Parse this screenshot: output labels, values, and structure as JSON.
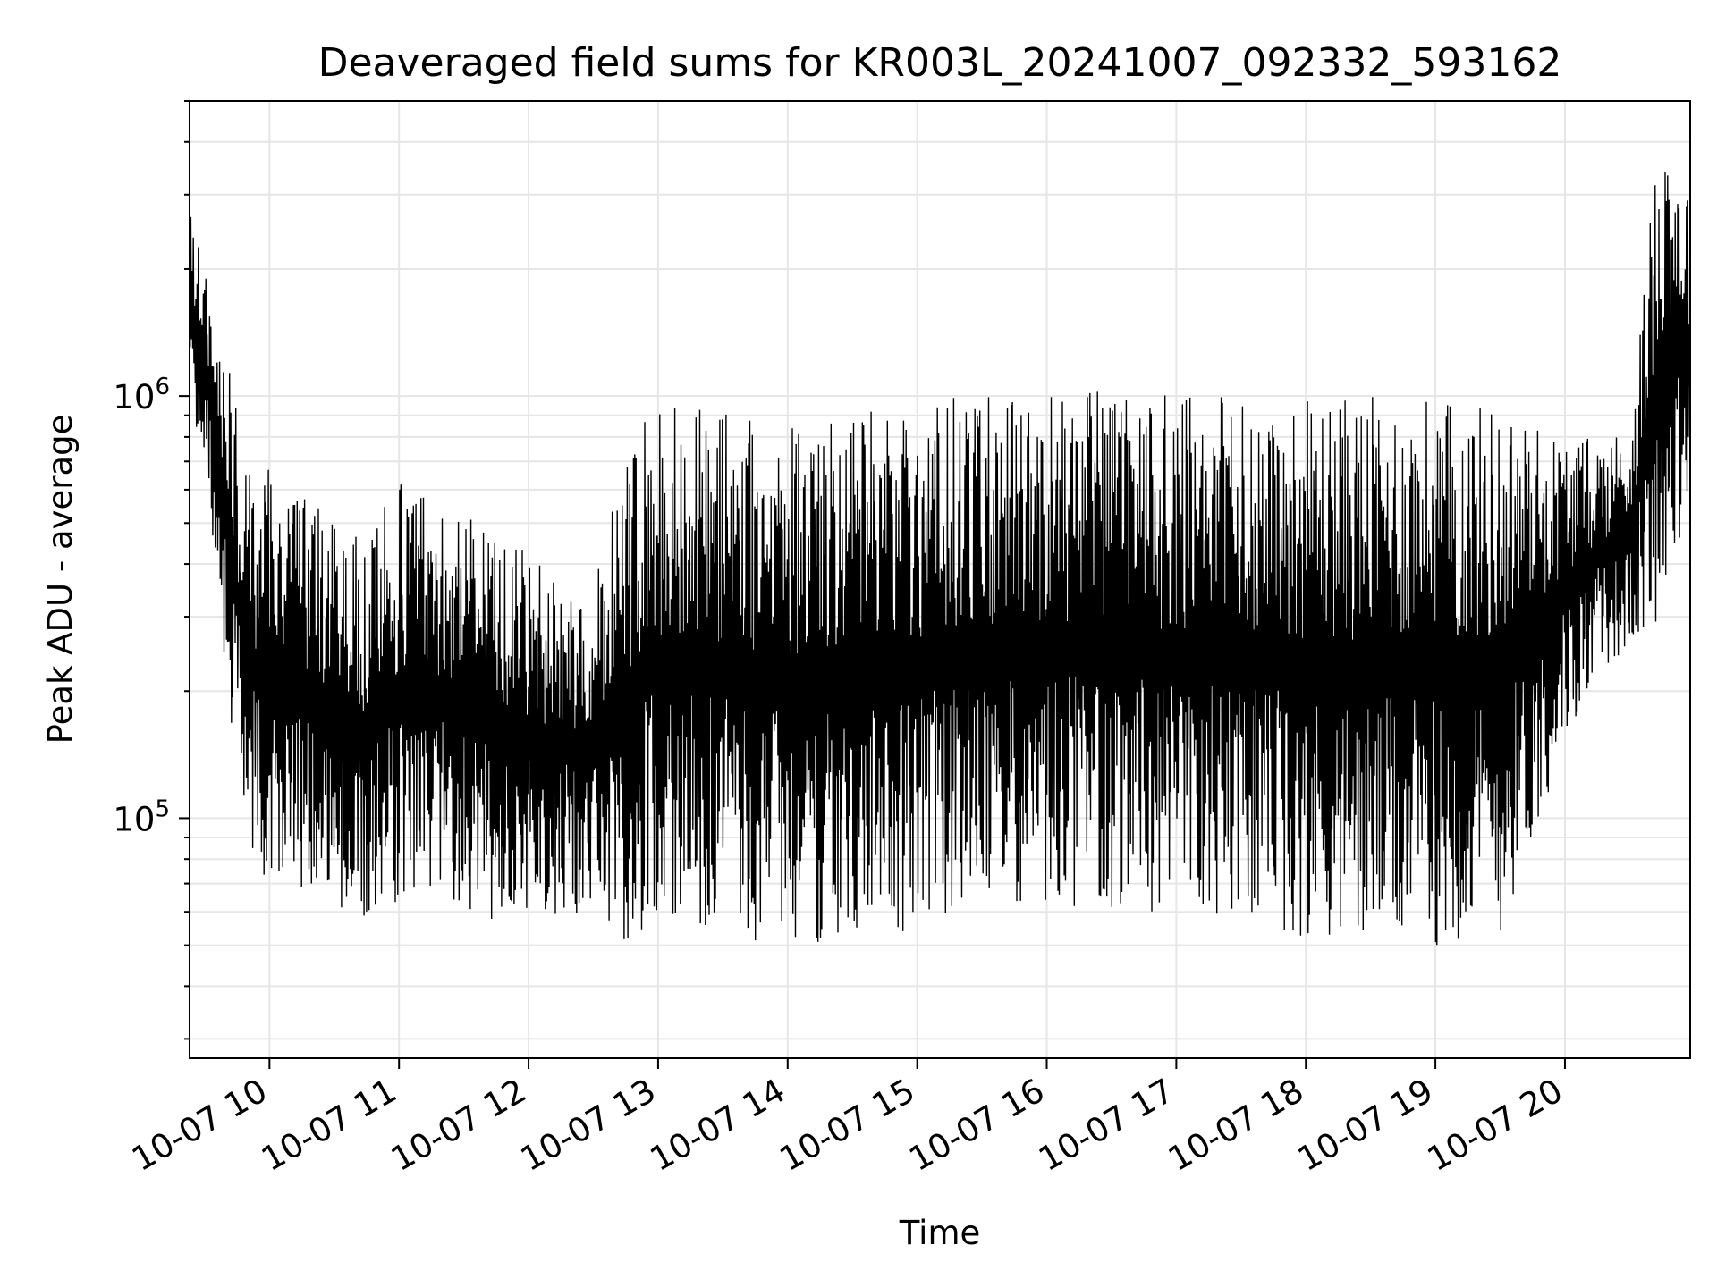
{
  "chart_data": {
    "type": "line",
    "title": "Deaveraged field sums for KR003L_20241007_092332_593162",
    "xlabel": "Time",
    "ylabel": "Peak ADU - average",
    "yscale": "log",
    "ylim": [
      27000,
      5000000
    ],
    "xlim": [
      "2024-10-07 09:23",
      "2024-10-07 20:58"
    ],
    "x_ticks": [
      {
        "time": "2024-10-07 10:00",
        "label": "10-07 10"
      },
      {
        "time": "2024-10-07 11:00",
        "label": "10-07 11"
      },
      {
        "time": "2024-10-07 12:00",
        "label": "10-07 12"
      },
      {
        "time": "2024-10-07 13:00",
        "label": "10-07 13"
      },
      {
        "time": "2024-10-07 14:00",
        "label": "10-07 14"
      },
      {
        "time": "2024-10-07 15:00",
        "label": "10-07 15"
      },
      {
        "time": "2024-10-07 16:00",
        "label": "10-07 16"
      },
      {
        "time": "2024-10-07 17:00",
        "label": "10-07 17"
      },
      {
        "time": "2024-10-07 18:00",
        "label": "10-07 18"
      },
      {
        "time": "2024-10-07 19:00",
        "label": "10-07 19"
      },
      {
        "time": "2024-10-07 20:00",
        "label": "10-07 20"
      }
    ],
    "y_ticks": [
      {
        "value": 100000,
        "base": "10",
        "exp": "5"
      },
      {
        "value": 1000000,
        "base": "10",
        "exp": "6"
      }
    ],
    "grid": true,
    "line_color": "#000000",
    "grid_color": "#e6e6e6",
    "series": [
      {
        "x": [
          "2024-10-07 09:23",
          "2024-10-07 09:30",
          "2024-10-07 09:40",
          "2024-10-07 09:50",
          "2024-10-07 10:00",
          "2024-10-07 10:15",
          "2024-10-07 10:30",
          "2024-10-07 10:45",
          "2024-10-07 11:00",
          "2024-10-07 11:15",
          "2024-10-07 11:30",
          "2024-10-07 11:45",
          "2024-10-07 12:00",
          "2024-10-07 12:15",
          "2024-10-07 12:30",
          "2024-10-07 12:45",
          "2024-10-07 13:00",
          "2024-10-07 13:30",
          "2024-10-07 14:00",
          "2024-10-07 14:30",
          "2024-10-07 15:00",
          "2024-10-07 15:30",
          "2024-10-07 16:00",
          "2024-10-07 16:30",
          "2024-10-07 17:00",
          "2024-10-07 17:30",
          "2024-10-07 18:00",
          "2024-10-07 18:30",
          "2024-10-07 19:00",
          "2024-10-07 19:30",
          "2024-10-07 20:00",
          "2024-10-07 20:15",
          "2024-10-07 20:30",
          "2024-10-07 20:45",
          "2024-10-07 20:58"
        ],
        "high": [
          2800000,
          2000000,
          1300000,
          650000,
          700000,
          600000,
          500000,
          450000,
          650000,
          600000,
          550000,
          500000,
          420000,
          380000,
          350000,
          750000,
          1000000,
          950000,
          880000,
          900000,
          980000,
          1000000,
          1050000,
          1050000,
          1000000,
          1000000,
          1000000,
          1000000,
          1000000,
          950000,
          800000,
          800000,
          850000,
          5000000,
          3200000
        ],
        "low": [
          950000,
          700000,
          200000,
          80000,
          70000,
          65000,
          60000,
          55000,
          60000,
          65000,
          60000,
          55000,
          55000,
          58000,
          60000,
          50000,
          55000,
          52000,
          50000,
          50000,
          55000,
          58000,
          60000,
          60000,
          58000,
          57000,
          52000,
          50000,
          50000,
          52000,
          150000,
          220000,
          250000,
          300000,
          500000
        ]
      }
    ]
  }
}
